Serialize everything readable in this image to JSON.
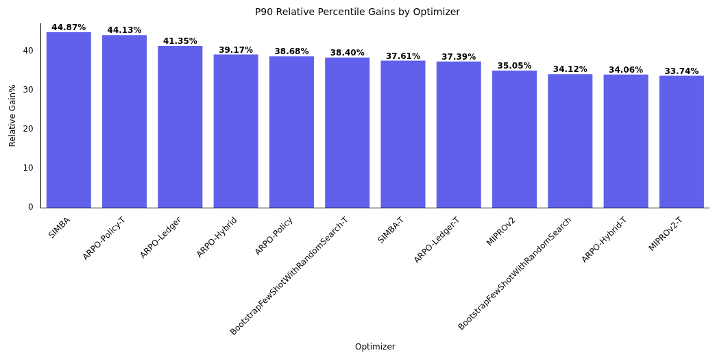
{
  "chart_data": {
    "type": "bar",
    "title": "P90 Relative Percentile Gains by Optimizer",
    "xlabel": "Optimizer",
    "ylabel": "Relative Gain%",
    "categories": [
      "SIMBA",
      "ARPO-Policy-T",
      "ARPO-Ledger",
      "ARPO-Hybrid",
      "ARPO-Policy",
      "BootstrapFewShotWithRandomSearch-T",
      "SIMBA-T",
      "ARPO-Ledger-T",
      "MIPROv2",
      "BootstrapFewShotWithRandomSearch",
      "ARPO-Hybrid-T",
      "MIPROv2-T"
    ],
    "values": [
      44.87,
      44.13,
      41.35,
      39.17,
      38.68,
      38.4,
      37.61,
      37.39,
      35.05,
      34.12,
      34.06,
      33.74
    ],
    "value_labels": [
      "44.87%",
      "44.13%",
      "41.35%",
      "39.17%",
      "38.68%",
      "38.40%",
      "37.61%",
      "37.39%",
      "35.05%",
      "34.12%",
      "34.06%",
      "33.74%"
    ],
    "color": "#6060eb",
    "ylim": [
      0,
      47
    ],
    "yticks": [
      0,
      10,
      20,
      30,
      40
    ],
    "grid": false,
    "legend": false
  }
}
